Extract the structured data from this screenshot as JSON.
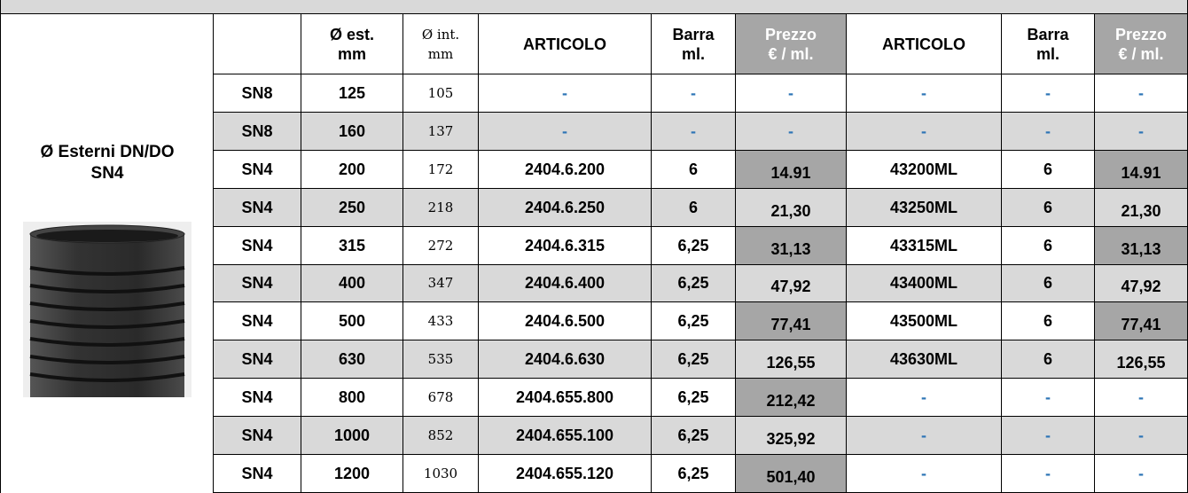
{
  "side_label": [
    "Ø Esterni DN/DO",
    "SN4"
  ],
  "table": {
    "header": [
      [],
      [
        "Ø est.",
        "mm"
      ],
      [
        "Ø int.",
        "mm"
      ],
      [
        "ARTICOLO"
      ],
      [
        "Barra",
        "ml."
      ],
      [
        "Prezzo",
        "€ / ml."
      ],
      [
        "ARTICOLO"
      ],
      [
        "Barra",
        "ml."
      ],
      [
        "Prezzo",
        "€ / ml."
      ]
    ],
    "rows": [
      [
        "SN8",
        "125",
        "105",
        "-",
        "-",
        "-",
        "-",
        "-",
        "-"
      ],
      [
        "SN8",
        "160",
        "137",
        "-",
        "-",
        "-",
        "-",
        "-",
        "-"
      ],
      [
        "SN4",
        "200",
        "172",
        "2404.6.200",
        "6",
        "14.91",
        "43200ML",
        "6",
        "14.91"
      ],
      [
        "SN4",
        "250",
        "218",
        "2404.6.250",
        "6",
        "21,30",
        "43250ML",
        "6",
        "21,30"
      ],
      [
        "SN4",
        "315",
        "272",
        "2404.6.315",
        "6,25",
        "31,13",
        "43315ML",
        "6",
        "31,13"
      ],
      [
        "SN4",
        "400",
        "347",
        "2404.6.400",
        "6,25",
        "47,92",
        "43400ML",
        "6",
        "47,92"
      ],
      [
        "SN4",
        "500",
        "433",
        "2404.6.500",
        "6,25",
        "77,41",
        "43500ML",
        "6",
        "77,41"
      ],
      [
        "SN4",
        "630",
        "535",
        "2404.6.630",
        "6,25",
        "126,55",
        "43630ML",
        "6",
        "126,55"
      ],
      [
        "SN4",
        "800",
        "678",
        "2404.655.800",
        "6,25",
        "212,42",
        "-",
        "-",
        "-"
      ],
      [
        "SN4",
        "1000",
        "852",
        "2404.655.100",
        "6,25",
        "325,92",
        "-",
        "-",
        "-"
      ],
      [
        "SN4",
        "1200",
        "1030",
        "2404.655.120",
        "6,25",
        "501,40",
        "-",
        "-",
        "-"
      ]
    ]
  }
}
